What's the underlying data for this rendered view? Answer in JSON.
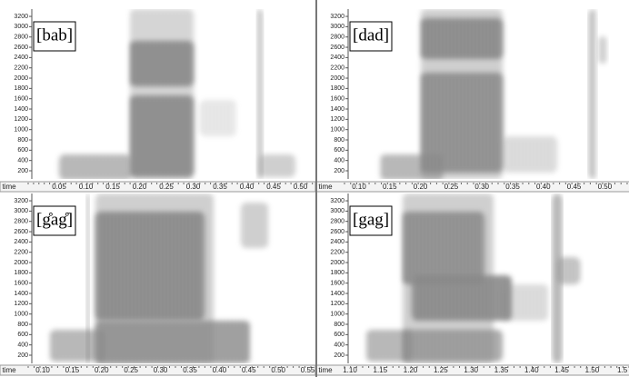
{
  "panels": [
    {
      "label": "[bab]",
      "yticks": [
        "200",
        "400",
        "600",
        "800",
        "1000",
        "1200",
        "1400",
        "1600",
        "1800",
        "2000",
        "2200",
        "2400",
        "2600",
        "2800",
        "3000",
        "3200"
      ],
      "xlabel": "time",
      "xticks": [
        "0.05",
        "0.10",
        "0.15",
        "0.20",
        "0.25",
        "0.30",
        "0.35",
        "0.40",
        "0.45",
        "0.50"
      ]
    },
    {
      "label": "[dad]",
      "yticks": [
        "200",
        "400",
        "600",
        "800",
        "1000",
        "1200",
        "1400",
        "1600",
        "1800",
        "2000",
        "2200",
        "2400",
        "2600",
        "2800",
        "3000",
        "3200"
      ],
      "xlabel": "time",
      "xticks": [
        "0.10",
        "0.15",
        "0.20",
        "0.25",
        "0.30",
        "0.35",
        "0.40",
        "0.45",
        "0.50"
      ]
    },
    {
      "label": "[g̊ag̊]",
      "yticks": [
        "200",
        "400",
        "600",
        "800",
        "1000",
        "1200",
        "1400",
        "1600",
        "1800",
        "2000",
        "2200",
        "2400",
        "2600",
        "2800",
        "3000",
        "3200"
      ],
      "xlabel": "time",
      "xticks": [
        "0.10",
        "0.15",
        "0.20",
        "0.25",
        "0.30",
        "0.35",
        "0.40",
        "0.45",
        "0.50",
        "0.55"
      ]
    },
    {
      "label": "[gag]",
      "yticks": [
        "200",
        "400",
        "600",
        "800",
        "1000",
        "1200",
        "1400",
        "1600",
        "1800",
        "2000",
        "2200",
        "2400",
        "2600",
        "2800",
        "3000",
        "3200"
      ],
      "xlabel": "time",
      "xticks": [
        "1.10",
        "1.15",
        "1.20",
        "1.25",
        "1.30",
        "1.35",
        "1.40",
        "1.45",
        "1.50",
        "1.5"
      ]
    }
  ]
}
